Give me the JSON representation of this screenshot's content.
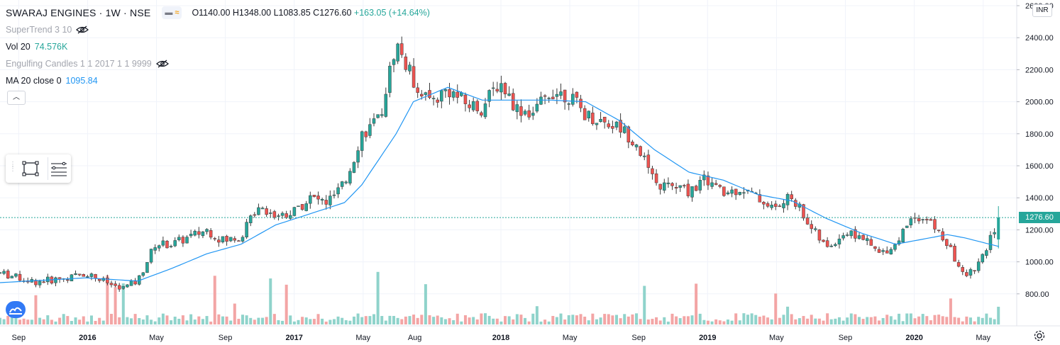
{
  "header": {
    "symbol": "SWARAJ ENGINES · 1W · NSE",
    "ohlc": "O1140.00 H1348.00 L1083.85 C1276.60",
    "change": "+163.05 (+14.64%)"
  },
  "indicators": [
    {
      "name": "SuperTrend 3 10",
      "value": "",
      "hidden": true
    },
    {
      "name": "Vol 20",
      "value": "74.576K",
      "hidden": false
    },
    {
      "name": "Engulfing Candles 1 1 2017 1 1 9999",
      "value": "",
      "hidden": true
    },
    {
      "name": "MA 20 close 0",
      "value": "1095.84",
      "hidden": false
    }
  ],
  "currency": "INR",
  "last_price_label": "1276.60",
  "colors": {
    "up": "#26a69a",
    "down": "#ef5350",
    "ma": "#2196f3",
    "vol_up": "#8fd3cb",
    "vol_down": "#f3a5a5"
  },
  "chart_data": {
    "type": "candlestick",
    "interval": "1W",
    "ylim": [
      600,
      2600
    ],
    "y_ticks": [
      800,
      1000,
      1200,
      1400,
      1600,
      1800,
      2000,
      2200,
      2400,
      2600
    ],
    "y_tick_labels": [
      "800.00",
      "1000.00",
      "1200.00",
      "1400.00",
      "1600.00",
      "1800.00",
      "2000.00",
      "2200.00",
      "2400.00",
      "2600.00"
    ],
    "x_tick_labels": [
      "Sep",
      "2016",
      "May",
      "Sep",
      "2017",
      "May",
      "Aug",
      "2018",
      "May",
      "Sep",
      "2019",
      "May",
      "Sep",
      "2020",
      "May"
    ],
    "last_price": 1276.6,
    "last_ohlc": {
      "open": 1140.0,
      "high": 1348.0,
      "low": 1083.85,
      "close": 1276.6
    },
    "volume_last": "74.576K",
    "ma20_last": 1095.84,
    "close_points": [
      [
        "Aug 2015",
        930
      ],
      [
        "Oct 2015",
        875
      ],
      [
        "Dec 2015",
        900
      ],
      [
        "Jan 2016",
        930
      ],
      [
        "Mar 2016",
        830
      ],
      [
        "Apr 2016",
        880
      ],
      [
        "May 2016",
        1110
      ],
      [
        "Jun 2016",
        1110
      ],
      [
        "Aug 2016",
        1200
      ],
      [
        "Sep 2016",
        1130
      ],
      [
        "Oct 2016",
        1160
      ],
      [
        "Nov 2016",
        1360
      ],
      [
        "Dec 2016",
        1290
      ],
      [
        "Jan 2017",
        1310
      ],
      [
        "Feb 2017",
        1400
      ],
      [
        "Mar 2017",
        1370
      ],
      [
        "Apr 2017",
        1480
      ],
      [
        "May 2017",
        1800
      ],
      [
        "Jun 2017",
        1880
      ],
      [
        "Jul 2017",
        2370
      ],
      [
        "Aug 2017",
        2130
      ],
      [
        "Sep 2017",
        2000
      ],
      [
        "Oct 2017",
        2080
      ],
      [
        "Nov 2017",
        1990
      ],
      [
        "Dec 2017",
        1960
      ],
      [
        "Jan 2018",
        2130
      ],
      [
        "Feb 2018",
        1960
      ],
      [
        "Mar 2018",
        1930
      ],
      [
        "Apr 2018",
        2070
      ],
      [
        "May 2018",
        2040
      ],
      [
        "Jun 2018",
        1920
      ],
      [
        "Jul 2018",
        1880
      ],
      [
        "Aug 2018",
        1840
      ],
      [
        "Sep 2018",
        1740
      ],
      [
        "Oct 2018",
        1480
      ],
      [
        "Nov 2018",
        1470
      ],
      [
        "Dec 2018",
        1440
      ],
      [
        "Jan 2019",
        1520
      ],
      [
        "Feb 2019",
        1420
      ],
      [
        "Mar 2019",
        1460
      ],
      [
        "Apr 2019",
        1400
      ],
      [
        "May 2019",
        1330
      ],
      [
        "Jun 2019",
        1410
      ],
      [
        "Jul 2019",
        1230
      ],
      [
        "Aug 2019",
        1080
      ],
      [
        "Sep 2019",
        1180
      ],
      [
        "Oct 2019",
        1160
      ],
      [
        "Nov 2019",
        1050
      ],
      [
        "Dec 2019",
        1110
      ],
      [
        "Jan 2020",
        1300
      ],
      [
        "Feb 2020",
        1250
      ],
      [
        "Mar 2020",
        1110
      ],
      [
        "Apr 2020",
        900
      ],
      [
        "May 2020",
        1010
      ],
      [
        "Jun 2020",
        1276.6
      ]
    ],
    "ma20_points": [
      [
        "Aug 2015",
        870
      ],
      [
        "Jan 2016",
        900
      ],
      [
        "Apr 2016",
        880
      ],
      [
        "Jun 2016",
        960
      ],
      [
        "Aug 2016",
        1050
      ],
      [
        "Oct 2016",
        1110
      ],
      [
        "Dec 2016",
        1230
      ],
      [
        "Feb 2017",
        1300
      ],
      [
        "Apr 2017",
        1370
      ],
      [
        "May 2017",
        1480
      ],
      [
        "Jul 2017",
        1800
      ],
      [
        "Aug 2017",
        2000
      ],
      [
        "Oct 2017",
        2090
      ],
      [
        "Dec 2017",
        2010
      ],
      [
        "Feb 2018",
        2010
      ],
      [
        "Apr 2018",
        2010
      ],
      [
        "Jun 2018",
        2000
      ],
      [
        "Aug 2018",
        1880
      ],
      [
        "Oct 2018",
        1700
      ],
      [
        "Dec 2018",
        1560
      ],
      [
        "Feb 2019",
        1510
      ],
      [
        "Apr 2019",
        1420
      ],
      [
        "Jun 2019",
        1380
      ],
      [
        "Aug 2019",
        1270
      ],
      [
        "Oct 2019",
        1180
      ],
      [
        "Dec 2019",
        1110
      ],
      [
        "Jan 2020",
        1130
      ],
      [
        "Mar 2020",
        1170
      ],
      [
        "Apr 2020",
        1150
      ],
      [
        "Jun 2020",
        1095.84
      ]
    ]
  }
}
